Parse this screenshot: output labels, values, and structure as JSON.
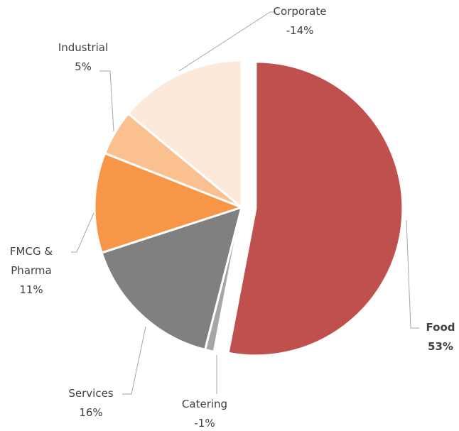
{
  "chart_data": {
    "type": "pie",
    "categories": [
      "Food",
      "Catering",
      "Services",
      "FMCG & Pharma",
      "Industrial",
      "Corporate"
    ],
    "values": [
      53,
      -1,
      16,
      11,
      5,
      -14
    ],
    "value_labels": [
      "53%",
      "-1%",
      "16%",
      "11%",
      "5%",
      "-14%"
    ],
    "colors": [
      "#c0504d",
      "#a6a6a6",
      "#808080",
      "#f79646",
      "#fac090",
      "#fde9d9"
    ]
  }
}
